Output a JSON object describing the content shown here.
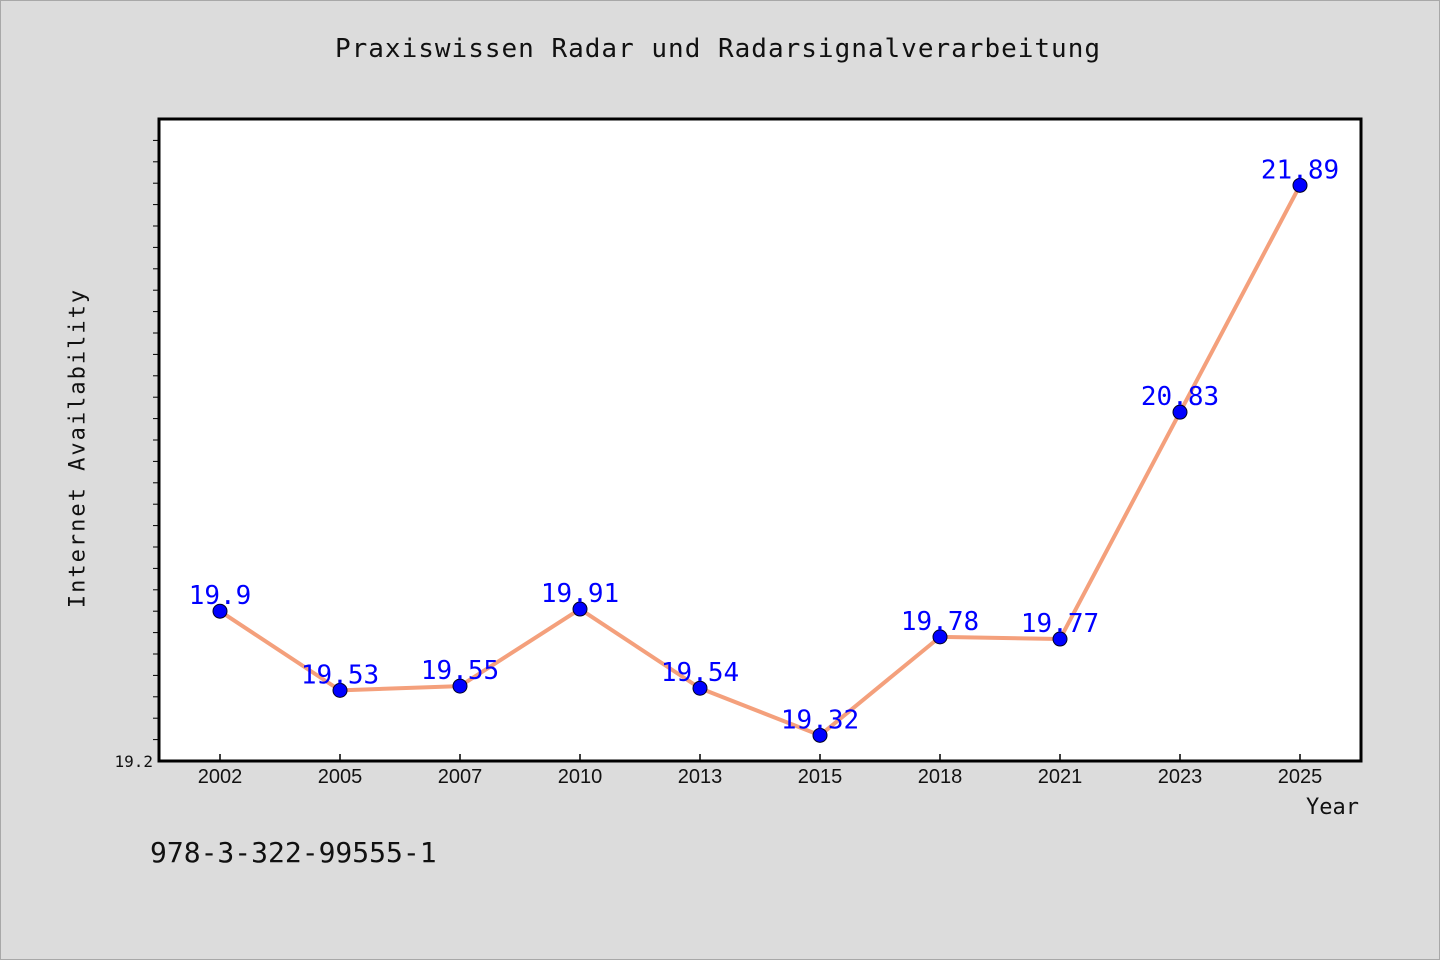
{
  "chart_data": {
    "type": "line",
    "title": "Praxiswissen Radar und Radarsignalverarbeitung",
    "xlabel": "Year",
    "ylabel": "Internet Availability",
    "categories": [
      "2002",
      "2005",
      "2007",
      "2010",
      "2013",
      "2015",
      "2018",
      "2021",
      "2023",
      "2025"
    ],
    "series": [
      {
        "values": [
          19.9,
          19.53,
          19.55,
          19.91,
          19.54,
          19.32,
          19.78,
          19.77,
          20.83,
          21.89
        ],
        "labels": [
          "19.9",
          "19.53",
          "19.55",
          "19.91",
          "19.54",
          "19.32",
          "19.78",
          "19.77",
          "20.83",
          "21.89"
        ]
      }
    ],
    "ylim": [
      19.2,
      22.2
    ],
    "y_tick_labels": [
      "19.2"
    ],
    "grid": false,
    "line_color": "#f4a07c",
    "marker_color": "#0000ff",
    "label_color": "#0000ff"
  },
  "footer_text": "978-3-322-99555-1"
}
